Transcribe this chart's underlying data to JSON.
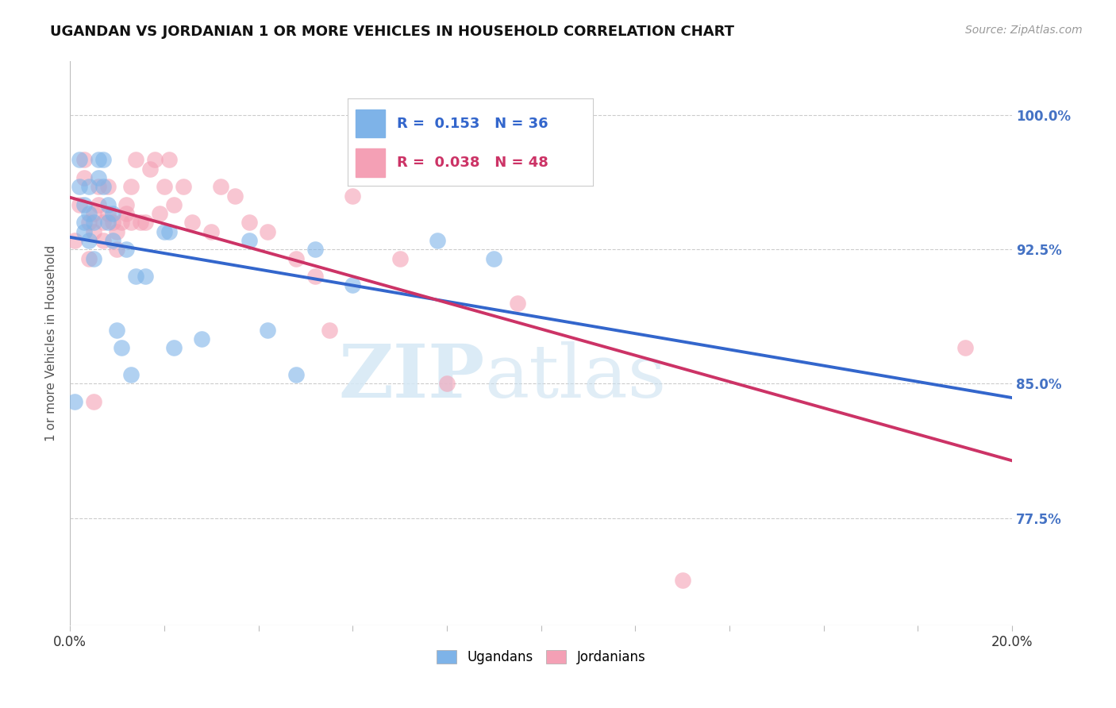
{
  "title": "UGANDAN VS JORDANIAN 1 OR MORE VEHICLES IN HOUSEHOLD CORRELATION CHART",
  "source": "Source: ZipAtlas.com",
  "ylabel": "1 or more Vehicles in Household",
  "ytick_values": [
    1.0,
    0.925,
    0.85,
    0.775
  ],
  "xlim": [
    0.0,
    0.2
  ],
  "ylim": [
    0.715,
    1.03
  ],
  "color_ugandan": "#7EB3E8",
  "color_jordanian": "#F4A0B5",
  "trendline_ugandan": "#3366CC",
  "trendline_jordanian": "#CC3366",
  "ugandan_x": [
    0.001,
    0.002,
    0.002,
    0.003,
    0.003,
    0.003,
    0.004,
    0.004,
    0.004,
    0.005,
    0.005,
    0.006,
    0.006,
    0.007,
    0.007,
    0.008,
    0.008,
    0.009,
    0.009,
    0.01,
    0.011,
    0.012,
    0.013,
    0.014,
    0.016,
    0.02,
    0.021,
    0.022,
    0.028,
    0.038,
    0.042,
    0.048,
    0.052,
    0.06,
    0.078,
    0.09
  ],
  "ugandan_y": [
    0.84,
    0.96,
    0.975,
    0.94,
    0.95,
    0.935,
    0.96,
    0.93,
    0.945,
    0.92,
    0.94,
    0.965,
    0.975,
    0.96,
    0.975,
    0.94,
    0.95,
    0.93,
    0.945,
    0.88,
    0.87,
    0.925,
    0.855,
    0.91,
    0.91,
    0.935,
    0.935,
    0.87,
    0.875,
    0.93,
    0.88,
    0.855,
    0.925,
    0.905,
    0.93,
    0.92
  ],
  "jordanian_x": [
    0.001,
    0.002,
    0.003,
    0.003,
    0.004,
    0.004,
    0.005,
    0.005,
    0.005,
    0.006,
    0.006,
    0.007,
    0.007,
    0.008,
    0.008,
    0.009,
    0.01,
    0.01,
    0.011,
    0.012,
    0.012,
    0.013,
    0.013,
    0.014,
    0.015,
    0.016,
    0.017,
    0.018,
    0.019,
    0.02,
    0.021,
    0.022,
    0.024,
    0.026,
    0.03,
    0.032,
    0.035,
    0.038,
    0.042,
    0.048,
    0.052,
    0.055,
    0.06,
    0.07,
    0.08,
    0.095,
    0.13,
    0.19
  ],
  "jordanian_y": [
    0.93,
    0.95,
    0.975,
    0.965,
    0.94,
    0.92,
    0.84,
    0.935,
    0.945,
    0.95,
    0.96,
    0.93,
    0.94,
    0.945,
    0.96,
    0.94,
    0.925,
    0.935,
    0.94,
    0.945,
    0.95,
    0.94,
    0.96,
    0.975,
    0.94,
    0.94,
    0.97,
    0.975,
    0.945,
    0.96,
    0.975,
    0.95,
    0.96,
    0.94,
    0.935,
    0.96,
    0.955,
    0.94,
    0.935,
    0.92,
    0.91,
    0.88,
    0.955,
    0.92,
    0.85,
    0.895,
    0.74,
    0.87
  ],
  "watermark_zip": "ZIP",
  "watermark_atlas": "atlas",
  "background_color": "#ffffff",
  "grid_color": "#cccccc",
  "title_color": "#111111",
  "right_label_color": "#4472C4",
  "title_fontsize": 13,
  "source_fontsize": 10,
  "legend_r_ugandan": "R =  0.153",
  "legend_n_ugandan": "N = 36",
  "legend_r_jordanian": "R =  0.038",
  "legend_n_jordanian": "N = 48"
}
